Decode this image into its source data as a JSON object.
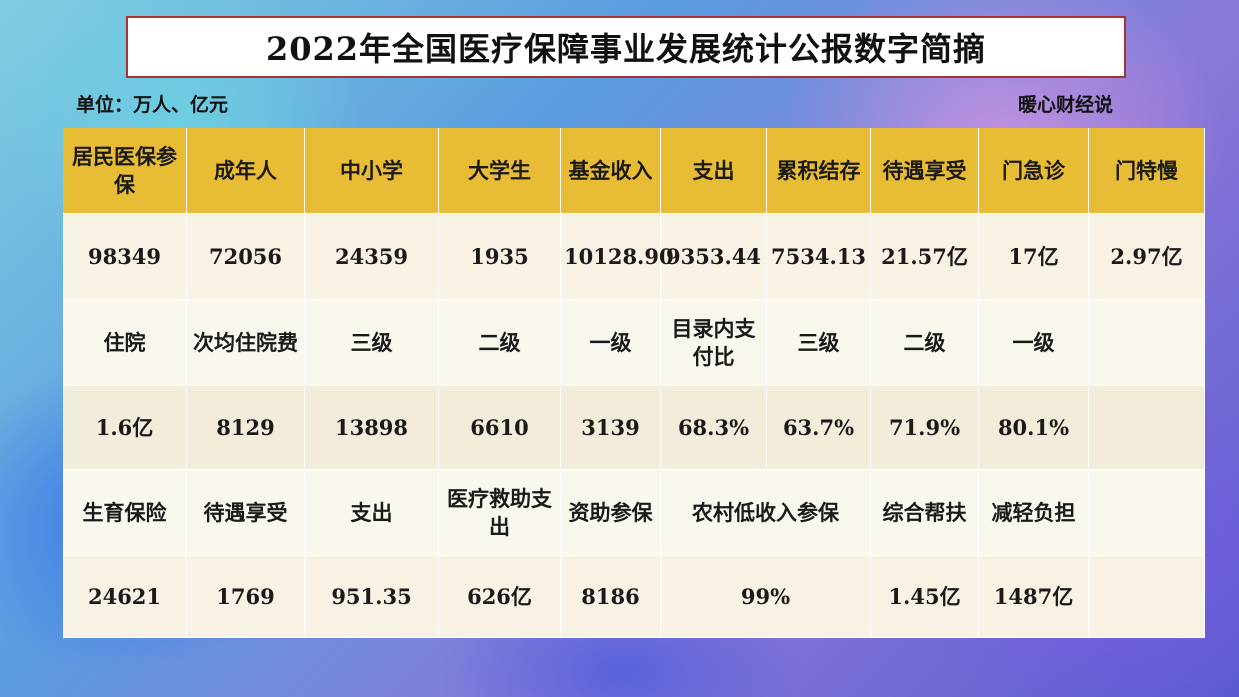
{
  "title": "2022年全国医疗保障事业发展统计公报数字简摘",
  "unit": "单位：万人、亿元",
  "source": "暖心财经说",
  "table": {
    "header": [
      "居民医保参保",
      "成年人",
      "中小学",
      "大学生",
      "基金收入",
      "支出",
      "累积结存",
      "待遇享受",
      "门急诊",
      "门特慢"
    ],
    "row1": [
      "98349",
      "72056",
      "24359",
      "1935",
      "10128.90",
      "9353.44",
      "7534.13",
      "21.57亿",
      "17亿",
      "2.97亿"
    ],
    "row2": [
      "住院",
      "次均住院费",
      "三级",
      "二级",
      "一级",
      "目录内支付比",
      "三级",
      "二级",
      "一级",
      ""
    ],
    "row3": [
      "1.6亿",
      "8129",
      "13898",
      "6610",
      "3139",
      "68.3%",
      "63.7%",
      "71.9%",
      "80.1%",
      ""
    ],
    "row4": [
      "生育保险",
      "待遇享受",
      "支出",
      "医疗救助支出",
      "资助参保",
      "农村低收入参保",
      "综合帮扶",
      "减轻负担",
      ""
    ],
    "row5": [
      "24621",
      "1769",
      "951.35",
      "626亿",
      "8186",
      "99%",
      "1.45亿",
      "1487亿",
      ""
    ]
  },
  "colors": {
    "header_bg": "#e8bd35",
    "title_border": "#a83232"
  }
}
